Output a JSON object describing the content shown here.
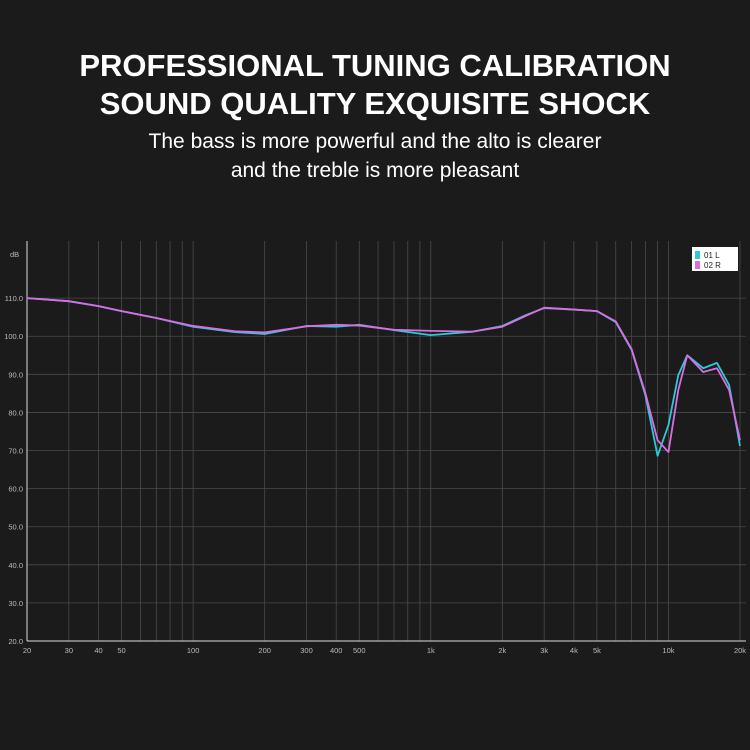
{
  "chart_data": {
    "type": "line",
    "title": [
      "PROFESSIONAL TUNING CALIBRATION",
      "SOUND QUALITY EXQUISITE SHOCK"
    ],
    "subtitle": [
      "The bass is more powerful and the alto is clearer",
      "and the treble is more pleasant"
    ],
    "y_label": "dB",
    "xscale": "log",
    "x": [
      20,
      30,
      40,
      50,
      70,
      100,
      150,
      200,
      300,
      400,
      500,
      700,
      1000,
      1500,
      2000,
      2500,
      3000,
      4000,
      5000,
      6000,
      7000,
      8000,
      9000,
      10000,
      11000,
      12000,
      14000,
      16000,
      18000,
      20000
    ],
    "series": [
      {
        "name": "01 L",
        "color": "#2ec8d8",
        "values": [
          110,
          109.2,
          107.9,
          106.6,
          104.8,
          102.5,
          101.1,
          100.6,
          102.7,
          102.5,
          103,
          101.6,
          100.3,
          101.2,
          102.7,
          105.5,
          107.4,
          107,
          106.6,
          103.7,
          96.4,
          84.5,
          68.6,
          76.7,
          89.8,
          95,
          91.6,
          93,
          87.2,
          71.2
        ]
      },
      {
        "name": "02 R",
        "color": "#d86ee2",
        "values": [
          110,
          109.2,
          107.9,
          106.6,
          104.8,
          102.7,
          101.3,
          101,
          102.6,
          103,
          102.8,
          101.7,
          101.4,
          101.2,
          102.5,
          105.3,
          107.5,
          107,
          106.6,
          103.9,
          96.6,
          85,
          72.7,
          69.6,
          85.9,
          95,
          90.6,
          91.6,
          85.9,
          72.7
        ]
      }
    ],
    "xlim": [
      20,
      20000
    ],
    "xticks": [
      20,
      30,
      40,
      50,
      100,
      200,
      300,
      400,
      500,
      {
        "value": 1000,
        "label": "1k"
      },
      {
        "value": 2000,
        "label": "2k"
      },
      {
        "value": 3000,
        "label": "3k"
      },
      {
        "value": 4000,
        "label": "4k"
      },
      {
        "value": 5000,
        "label": "5k"
      },
      {
        "value": 10000,
        "label": "10k"
      },
      {
        "value": 20000,
        "label": "20k"
      }
    ],
    "x_minor_grid": [
      60,
      70,
      80,
      90,
      600,
      700,
      800,
      900,
      6000,
      7000,
      8000,
      9000
    ],
    "ylim": [
      20,
      125
    ],
    "yticks": [
      {
        "value": 20,
        "label": "20.0"
      },
      {
        "value": 30,
        "label": "30.0"
      },
      {
        "value": 40,
        "label": "40.0"
      },
      {
        "value": 50,
        "label": "50.0"
      },
      {
        "value": 60,
        "label": "60.0"
      },
      {
        "value": 70,
        "label": "70.0"
      },
      {
        "value": 80,
        "label": "80.0"
      },
      {
        "value": 90,
        "label": "90.0"
      },
      {
        "value": 100,
        "label": "100.0"
      },
      {
        "value": 110,
        "label": "110.0"
      }
    ],
    "grid": true,
    "legend": "upper right"
  }
}
